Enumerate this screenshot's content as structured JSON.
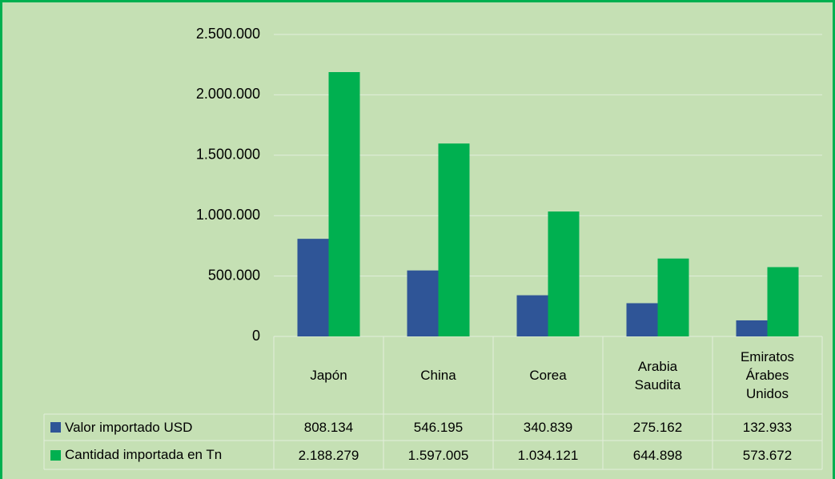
{
  "chart_data": {
    "type": "bar",
    "categories": [
      "Japón",
      "China",
      "Corea",
      "Arabia Saudita",
      "Emiratos Árabes Unidos"
    ],
    "series": [
      {
        "name": "Valor importado USD",
        "color": "#2f5597",
        "values": [
          808134,
          546195,
          340839,
          275162,
          132933
        ],
        "value_labels": [
          "808.134",
          "546.195",
          "340.839",
          "275.162",
          "132.933"
        ]
      },
      {
        "name": "Cantidad importada en Tn",
        "color": "#00b050",
        "values": [
          2188279,
          1597005,
          1034121,
          644898,
          573672
        ],
        "value_labels": [
          "2.188.279",
          "1.597.005",
          "1.034.121",
          "644.898",
          "573.672"
        ]
      }
    ],
    "ylim": [
      0,
      2500000
    ],
    "yticks": [
      0,
      {
        "value": 500000,
        "label": "500.000"
      },
      {
        "value": 1000000,
        "label": "1.000.000"
      },
      {
        "value": 1500000,
        "label": "1.500.000"
      },
      {
        "value": 2000000,
        "label": "2.000.000"
      },
      {
        "value": 2500000,
        "label": "2.500.000"
      }
    ],
    "grid": true,
    "data_table": true
  }
}
